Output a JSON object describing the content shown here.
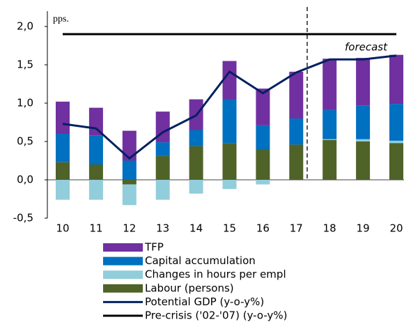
{
  "chart_data": {
    "type": "bar",
    "axis_label": "pps.",
    "annotation": "forecast",
    "categories": [
      "10",
      "11",
      "12",
      "13",
      "14",
      "15",
      "16",
      "17",
      "18",
      "19",
      "20"
    ],
    "series": [
      {
        "name": "TFP",
        "type": "bar",
        "color": "#7030a0",
        "values": [
          0.42,
          0.36,
          0.39,
          0.4,
          0.4,
          0.5,
          0.48,
          0.61,
          0.67,
          0.62,
          0.64
        ]
      },
      {
        "name": "Capital accumulation",
        "type": "bar",
        "color": "#0070c0",
        "values": [
          0.37,
          0.38,
          0.25,
          0.18,
          0.21,
          0.57,
          0.31,
          0.34,
          0.38,
          0.44,
          0.48
        ]
      },
      {
        "name": "Changes in hours per empl",
        "type": "bar",
        "color": "#92cddc",
        "values": [
          -0.26,
          -0.26,
          -0.27,
          -0.26,
          -0.18,
          -0.12,
          -0.06,
          0,
          0.01,
          0.03,
          0.03
        ]
      },
      {
        "name": "Labour (persons)",
        "type": "bar",
        "color": "#4f6228",
        "values": [
          0.23,
          0.2,
          -0.06,
          0.31,
          0.44,
          0.48,
          0.4,
          0.46,
          0.52,
          0.5,
          0.48
        ]
      },
      {
        "name": "Potential GDP (y-o-y%)",
        "type": "line",
        "color": "#002060",
        "values": [
          0.73,
          0.67,
          0.28,
          0.62,
          0.84,
          1.41,
          1.13,
          1.4,
          1.57,
          1.57,
          1.62
        ]
      },
      {
        "name": "Pre-crisis ('02-'07) (y-o-y%)",
        "type": "line",
        "color": "#000000",
        "values": [
          1.9,
          1.9,
          1.9,
          1.9,
          1.9,
          1.9,
          1.9,
          1.9,
          1.9,
          1.9,
          1.9
        ]
      }
    ],
    "ylim": [
      -0.5,
      2.2
    ],
    "yticks": [
      {
        "value": -0.5,
        "label": "-0,5"
      },
      {
        "value": 0,
        "label": "0,0"
      },
      {
        "value": 0.5,
        "label": "0,5"
      },
      {
        "value": 1,
        "label": "1,0"
      },
      {
        "value": 1.5,
        "label": "1,5"
      },
      {
        "value": 2,
        "label": "2,0"
      }
    ]
  }
}
